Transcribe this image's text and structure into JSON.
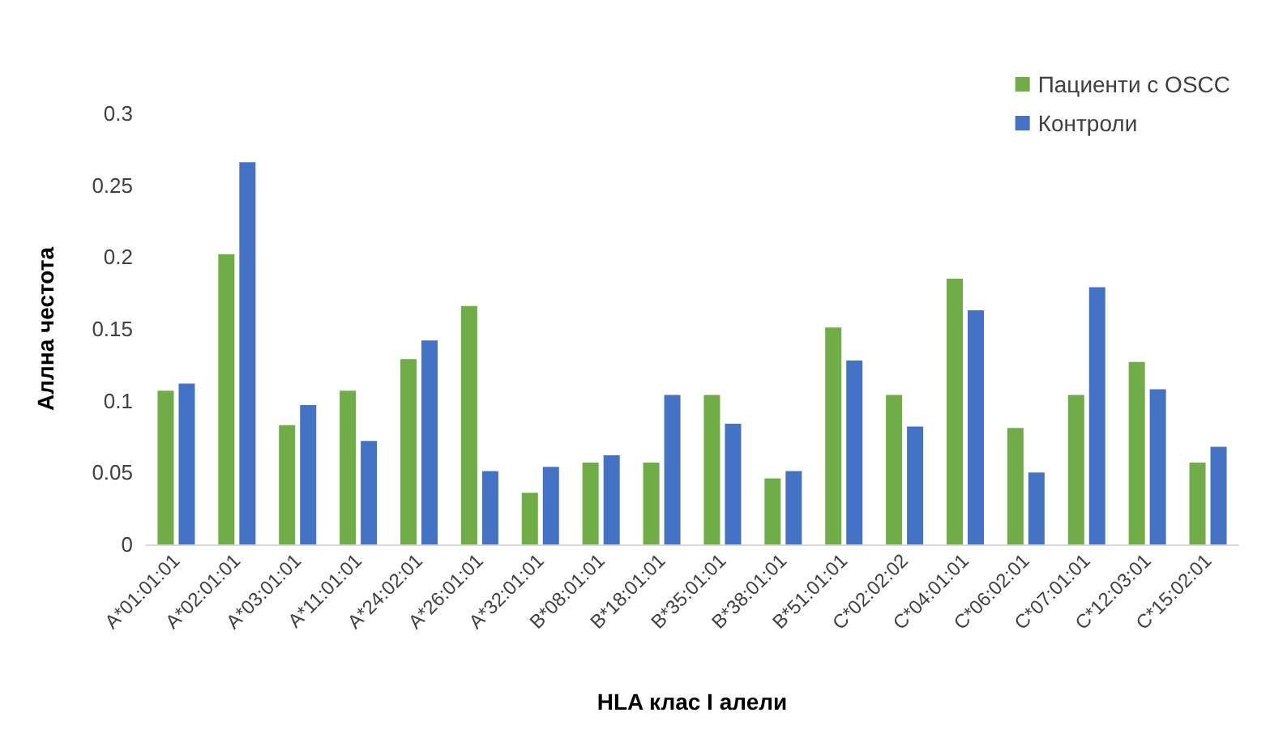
{
  "chart_data": {
    "type": "bar",
    "xlabel": "HLA клас I алели",
    "ylabel": "Аллна честота",
    "categories": [
      "A*01:01:01",
      "A*02:01:01",
      "A*03:01:01",
      "A*11:01:01",
      "A*24:02:01",
      "A*26:01:01",
      "A*32:01:01",
      "B*08:01:01",
      "B*18:01:01",
      "B*35:01:01",
      "B*38:01:01",
      "B*51:01:01",
      "C*02:02:02",
      "C*04:01:01",
      "C*06:02:01",
      "C*07:01:01",
      "C*12:03:01",
      "C*15:02:01"
    ],
    "series": [
      {
        "name": "Пациенти с OSCC",
        "color": "#70ad47",
        "values": [
          0.107,
          0.202,
          0.083,
          0.107,
          0.129,
          0.166,
          0.036,
          0.057,
          0.057,
          0.104,
          0.046,
          0.151,
          0.104,
          0.185,
          0.081,
          0.104,
          0.127,
          0.057
        ]
      },
      {
        "name": "Контроли",
        "color": "#4472c4",
        "values": [
          0.112,
          0.266,
          0.097,
          0.072,
          0.142,
          0.051,
          0.054,
          0.062,
          0.104,
          0.084,
          0.051,
          0.128,
          0.082,
          0.163,
          0.05,
          0.179,
          0.108,
          0.068
        ]
      }
    ],
    "ylim": [
      0,
      0.3
    ],
    "yticks": [
      0,
      0.05,
      0.1,
      0.15,
      0.2,
      0.25,
      0.3
    ],
    "grid": false,
    "legend": "top right"
  }
}
